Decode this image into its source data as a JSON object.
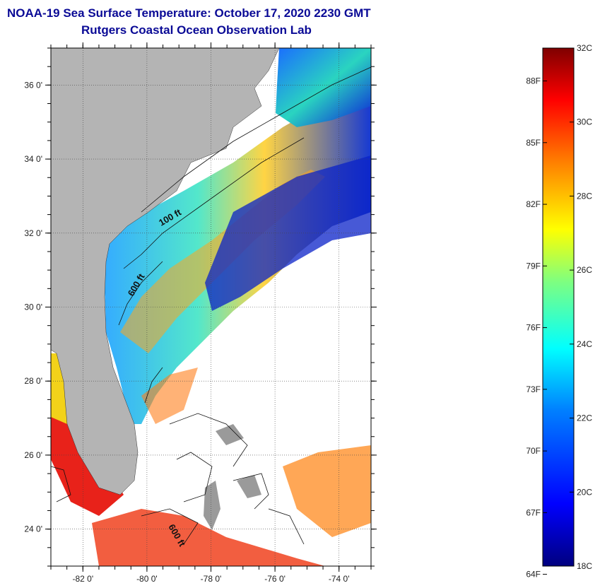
{
  "title": {
    "line1": "NOAA-19 Sea Surface Temperature:  October 17, 2020 2230 GMT",
    "line2": "Rutgers Coastal Ocean Observation Lab"
  },
  "map": {
    "lon_range": [
      -83,
      -73
    ],
    "lat_range": [
      23,
      37
    ],
    "lon_ticks": [
      {
        "value": -82,
        "label": "-82 0'"
      },
      {
        "value": -80,
        "label": "-80 0'"
      },
      {
        "value": -78,
        "label": "-78 0'"
      },
      {
        "value": -76,
        "label": "-76 0'"
      },
      {
        "value": -74,
        "label": "-74 0'"
      }
    ],
    "lat_ticks": [
      {
        "value": 36,
        "label": "36 0'"
      },
      {
        "value": 34,
        "label": "34 0'"
      },
      {
        "value": 32,
        "label": "32 0'"
      },
      {
        "value": 30,
        "label": "30 0'"
      },
      {
        "value": 28,
        "label": "28 0'"
      },
      {
        "value": 26,
        "label": "26 0'"
      },
      {
        "value": 24,
        "label": "24 0'"
      }
    ],
    "contour_labels": [
      "100 ft",
      "600 ft",
      "600 ft"
    ],
    "colors": {
      "land": "#b4b4b4",
      "cloud": "#ffffff",
      "frame": "#000000"
    }
  },
  "colorbar": {
    "celsius_labels": [
      "32C",
      "30C",
      "28C",
      "26C",
      "24C",
      "22C",
      "20C",
      "18C"
    ],
    "fahrenheit_labels": [
      "88F",
      "85F",
      "82F",
      "79F",
      "76F",
      "73F",
      "70F",
      "67F",
      "64F"
    ],
    "range_c": [
      18,
      32
    ],
    "colors": [
      "#00007f",
      "#0000ff",
      "#007fff",
      "#00ffff",
      "#7fff7f",
      "#ffff00",
      "#ff7f00",
      "#ff0000",
      "#7f0000"
    ]
  }
}
